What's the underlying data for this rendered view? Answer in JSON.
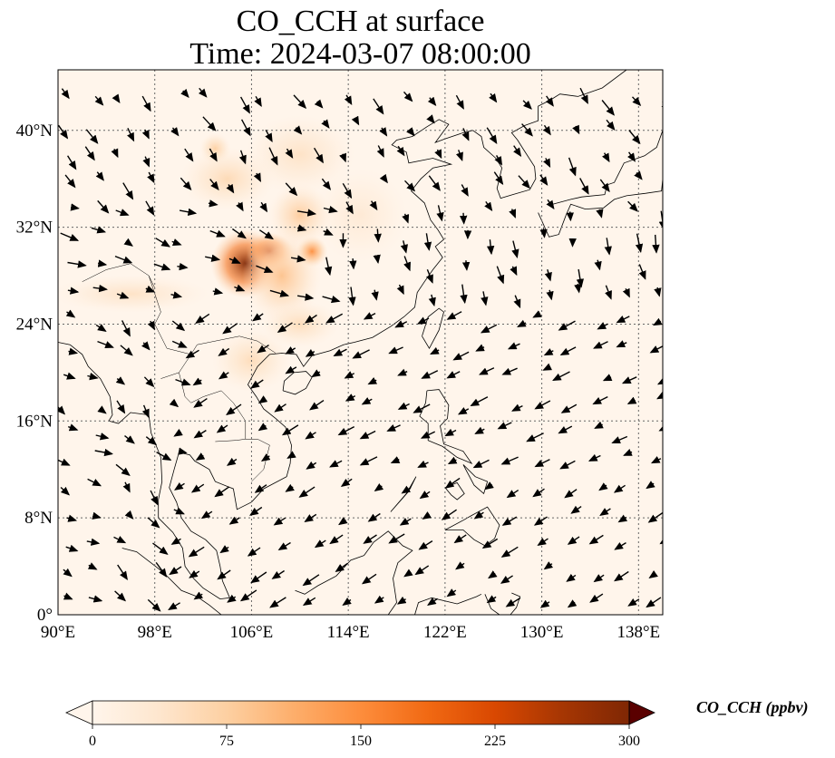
{
  "title": {
    "line1": "CO_CCH at surface",
    "line2": "Time: 2024-03-07 08:00:00"
  },
  "map": {
    "lon_range": [
      90,
      140
    ],
    "lat_range": [
      0,
      45
    ],
    "lon_ticks": [
      {
        "value": 90,
        "label": "90°E"
      },
      {
        "value": 98,
        "label": "98°E"
      },
      {
        "value": 106,
        "label": "106°E"
      },
      {
        "value": 114,
        "label": "114°E"
      },
      {
        "value": 122,
        "label": "122°E"
      },
      {
        "value": 130,
        "label": "130°E"
      },
      {
        "value": 138,
        "label": "138°E"
      }
    ],
    "lat_ticks": [
      {
        "value": 0,
        "label": "0°"
      },
      {
        "value": 8,
        "label": "8°N"
      },
      {
        "value": 16,
        "label": "16°N"
      },
      {
        "value": 24,
        "label": "24°N"
      },
      {
        "value": 32,
        "label": "32°N"
      },
      {
        "value": 40,
        "label": "40°N"
      }
    ],
    "gridlines": true,
    "background_color": "#fff5eb",
    "plumes": [
      {
        "lon": 105.5,
        "lat": 29.0,
        "sx": 2.2,
        "sy": 2.2,
        "value": 300
      },
      {
        "lon": 107.5,
        "lat": 30.0,
        "sx": 1.5,
        "sy": 1.2,
        "value": 240
      },
      {
        "lon": 108.5,
        "lat": 28.0,
        "sx": 2.5,
        "sy": 3.0,
        "value": 90
      },
      {
        "lon": 111.0,
        "lat": 30.0,
        "sx": 1.0,
        "sy": 1.0,
        "value": 150
      },
      {
        "lon": 104.0,
        "lat": 36.0,
        "sx": 3.0,
        "sy": 2.0,
        "value": 60
      },
      {
        "lon": 110.0,
        "lat": 38.0,
        "sx": 3.5,
        "sy": 2.5,
        "value": 45
      },
      {
        "lon": 96.0,
        "lat": 26.5,
        "sx": 5.0,
        "sy": 1.2,
        "value": 45
      },
      {
        "lon": 106.0,
        "lat": 21.0,
        "sx": 2.5,
        "sy": 2.0,
        "value": 55
      },
      {
        "lon": 110.0,
        "lat": 24.0,
        "sx": 2.5,
        "sy": 1.5,
        "value": 55
      },
      {
        "lon": 115.0,
        "lat": 33.0,
        "sx": 3.0,
        "sy": 3.0,
        "value": 30
      },
      {
        "lon": 110.0,
        "lat": 33.0,
        "sx": 2.0,
        "sy": 2.0,
        "value": 80
      },
      {
        "lon": 103.0,
        "lat": 38.5,
        "sx": 1.0,
        "sy": 1.0,
        "value": 75
      }
    ]
  },
  "colorbar": {
    "label": "CO_CCH (ppbv)",
    "min": 0,
    "max": 300,
    "ticks": [
      {
        "value": 0,
        "label": "0"
      },
      {
        "value": 75,
        "label": "75"
      },
      {
        "value": 150,
        "label": "150"
      },
      {
        "value": 225,
        "label": "225"
      },
      {
        "value": 300,
        "label": "300"
      }
    ],
    "colormap": [
      "#fff5eb",
      "#fee6ce",
      "#fdd0a2",
      "#fdae6b",
      "#fd8d3c",
      "#f16913",
      "#d94801",
      "#a63603",
      "#7f2704"
    ],
    "under_color": "#fff5eb",
    "over_color": "#5a0000"
  }
}
